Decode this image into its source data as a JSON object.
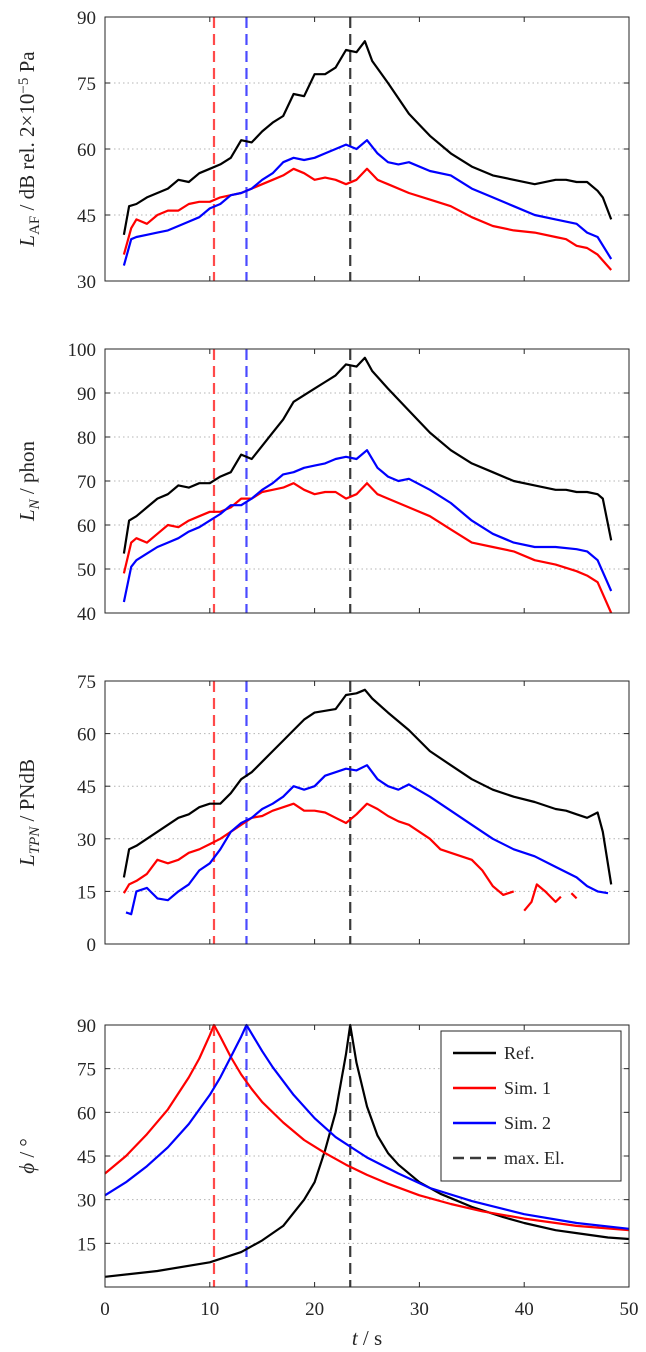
{
  "colors": {
    "ref": "#000000",
    "sim1": "#ff0000",
    "sim2": "#0000ff",
    "maxEl": "#3a3a3a",
    "sim1Vline": "#ff4a4a",
    "sim2Vline": "#4a4aff",
    "grid": "#b4b4b4",
    "axis": "#262626"
  },
  "legend": [
    {
      "label": "Ref.",
      "color": "#000000",
      "dash": false
    },
    {
      "label": "Sim. 1",
      "color": "#ff0000",
      "dash": false
    },
    {
      "label": "Sim. 2",
      "color": "#0000ff",
      "dash": false
    },
    {
      "label": "max. El.",
      "color": "#3a3a3a",
      "dash": true
    }
  ],
  "xlabel": {
    "var": "t",
    "unit": " / s"
  },
  "chart_data": [
    {
      "type": "line",
      "ylabel": {
        "main": "L",
        "sub": "AF",
        "rest": " / dB rel. 2×10",
        "sup": "−5",
        "tail": " Pa"
      },
      "xlim": [
        0,
        50
      ],
      "ylim": [
        30,
        90
      ],
      "yticks": [
        30,
        45,
        60,
        75,
        90
      ],
      "xticks": [
        0,
        10,
        20,
        30,
        40,
        50
      ],
      "show_xticklabels": false,
      "grid_y": true,
      "vlines": [
        {
          "x": 10.4,
          "color": "sim1"
        },
        {
          "x": 13.5,
          "color": "sim2"
        },
        {
          "x": 23.4,
          "color": "ref"
        }
      ],
      "series": [
        {
          "key": "ref",
          "x": [
            1.8,
            2.3,
            3,
            4,
            5,
            6,
            7,
            8,
            9,
            10,
            11,
            12,
            13,
            14,
            15,
            16,
            17,
            18,
            19,
            20,
            21,
            22,
            23,
            24,
            24.8,
            25.5,
            27,
            29,
            31,
            33,
            35,
            37,
            39,
            41,
            43,
            44,
            45,
            46,
            47,
            47.5,
            48.3
          ],
          "y": [
            40.5,
            47,
            47.5,
            49,
            50,
            51,
            53,
            52.5,
            54.5,
            55.5,
            56.5,
            58,
            62,
            61.5,
            64,
            66,
            67.5,
            72.5,
            72,
            77,
            77,
            78.5,
            82.5,
            82,
            84.5,
            80,
            75,
            68,
            63,
            59,
            56,
            54,
            53,
            52,
            53,
            53,
            52.5,
            52.5,
            50.5,
            49,
            44
          ]
        },
        {
          "key": "sim1",
          "x": [
            1.8,
            2.5,
            3,
            4,
            5,
            6,
            7,
            8,
            9,
            10,
            11,
            12,
            13,
            14,
            15,
            16,
            17,
            18,
            19,
            20,
            21,
            22,
            23,
            24,
            25,
            26,
            27,
            29,
            31,
            33,
            35,
            37,
            39,
            41,
            43,
            44,
            45,
            46,
            47,
            48.3
          ],
          "y": [
            36,
            42,
            44,
            43,
            45,
            46,
            46,
            47.5,
            48,
            48,
            49,
            49.5,
            50,
            51,
            52,
            53,
            54,
            55.5,
            54.5,
            53,
            53.5,
            53,
            52,
            53,
            55.5,
            53,
            52,
            50,
            48.5,
            47,
            44.5,
            42.5,
            41.5,
            41,
            40,
            39.5,
            38,
            37.5,
            36,
            32.5
          ]
        },
        {
          "key": "sim2",
          "x": [
            1.8,
            2.5,
            3,
            4,
            5,
            6,
            7,
            8,
            9,
            10,
            11,
            12,
            13,
            14,
            15,
            16,
            17,
            18,
            19,
            20,
            21,
            22,
            23,
            24,
            25,
            26,
            27,
            28,
            29,
            31,
            33,
            35,
            37,
            39,
            41,
            43,
            45,
            46,
            47,
            48.3
          ],
          "y": [
            33.5,
            39.5,
            40,
            40.5,
            41,
            41.5,
            42.5,
            43.5,
            44.5,
            46.5,
            47.5,
            49.5,
            50,
            51,
            53,
            54.5,
            57,
            58,
            57.5,
            58,
            59,
            60,
            61,
            60,
            62,
            59,
            57,
            56.5,
            57,
            55,
            54,
            51,
            49,
            47,
            45,
            44,
            43,
            41,
            40,
            35
          ]
        }
      ]
    },
    {
      "type": "line",
      "ylabel": {
        "main": "L",
        "sub": "N",
        "rest": " / phon"
      },
      "xlim": [
        0,
        50
      ],
      "ylim": [
        40,
        100
      ],
      "yticks": [
        40,
        50,
        60,
        70,
        80,
        90,
        100
      ],
      "xticks": [
        0,
        10,
        20,
        30,
        40,
        50
      ],
      "show_xticklabels": false,
      "grid_y": true,
      "vlines": [
        {
          "x": 10.4,
          "color": "sim1"
        },
        {
          "x": 13.5,
          "color": "sim2"
        },
        {
          "x": 23.4,
          "color": "ref"
        }
      ],
      "series": [
        {
          "key": "ref",
          "x": [
            1.8,
            2.3,
            3,
            4,
            5,
            6,
            7,
            8,
            9,
            10,
            11,
            12,
            13,
            14,
            15,
            16,
            17,
            18,
            19,
            20,
            21,
            22,
            23,
            24,
            24.8,
            25.5,
            27,
            29,
            31,
            33,
            35,
            37,
            39,
            41,
            43,
            44,
            45,
            46,
            47,
            47.5,
            48.3
          ],
          "y": [
            53.5,
            61,
            62,
            64,
            66,
            67,
            69,
            68.5,
            69.5,
            69.5,
            71,
            72,
            76,
            75,
            78,
            81,
            84,
            88,
            89.5,
            91,
            92.5,
            94,
            96.5,
            96,
            98,
            95,
            91,
            86,
            81,
            77,
            74,
            72,
            70,
            69,
            68,
            68,
            67.5,
            67.5,
            67,
            66,
            56.5
          ]
        },
        {
          "key": "sim1",
          "x": [
            1.8,
            2.5,
            3,
            4,
            5,
            6,
            7,
            8,
            9,
            10,
            11,
            12,
            13,
            14,
            15,
            16,
            17,
            18,
            19,
            20,
            21,
            22,
            23,
            24,
            25,
            26,
            27,
            29,
            31,
            33,
            35,
            37,
            39,
            41,
            43,
            45,
            46,
            47,
            48.3
          ],
          "y": [
            49,
            56,
            57,
            56,
            58,
            60,
            59.5,
            61,
            62,
            63,
            63,
            64,
            66,
            66,
            67.5,
            68,
            68.5,
            69.5,
            68,
            67,
            67.5,
            67.5,
            66,
            67,
            69.5,
            67,
            66,
            64,
            62,
            59,
            56,
            55,
            54,
            52,
            51,
            49.5,
            48.5,
            47,
            40
          ]
        },
        {
          "key": "sim2",
          "x": [
            1.8,
            2.5,
            3,
            4,
            5,
            6,
            7,
            8,
            9,
            10,
            11,
            12,
            13,
            14,
            15,
            16,
            17,
            18,
            19,
            20,
            21,
            22,
            23,
            24,
            25,
            26,
            27,
            28,
            29,
            31,
            33,
            35,
            37,
            39,
            41,
            43,
            45,
            46,
            47,
            48.3
          ],
          "y": [
            42.5,
            50.5,
            52,
            53.5,
            55,
            56,
            57,
            58.5,
            59.5,
            61,
            62.5,
            64.5,
            64.5,
            66,
            68,
            69.5,
            71.5,
            72,
            73,
            73.5,
            74,
            75,
            75.5,
            75,
            77,
            73,
            71,
            70,
            70.5,
            68,
            65,
            61,
            58,
            56,
            55,
            55,
            54.5,
            54,
            52,
            45
          ]
        }
      ]
    },
    {
      "type": "line",
      "ylabel": {
        "main": "L",
        "sub": "TPN",
        "rest": " / PNdB"
      },
      "xlim": [
        0,
        50
      ],
      "ylim": [
        0,
        75
      ],
      "yticks": [
        0,
        15,
        30,
        45,
        60,
        75
      ],
      "xticks": [
        0,
        10,
        20,
        30,
        40,
        50
      ],
      "show_xticklabels": false,
      "grid_y": true,
      "vlines": [
        {
          "x": 10.4,
          "color": "sim1"
        },
        {
          "x": 13.5,
          "color": "sim2"
        },
        {
          "x": 23.4,
          "color": "ref"
        }
      ],
      "series": [
        {
          "key": "ref",
          "x": [
            1.8,
            2.3,
            3,
            4,
            5,
            6,
            7,
            8,
            9,
            10,
            11,
            12,
            13,
            14,
            15,
            16,
            17,
            18,
            19,
            20,
            21,
            22,
            23,
            24,
            24.8,
            25.5,
            27,
            29,
            31,
            33,
            35,
            37,
            39,
            41,
            43,
            44,
            45,
            46,
            47,
            47.5,
            48.3
          ],
          "y": [
            19,
            27,
            28,
            30,
            32,
            34,
            36,
            37,
            39,
            40,
            40,
            43,
            47,
            49,
            52,
            55,
            58,
            61,
            64,
            66,
            66.5,
            67,
            71,
            71.5,
            72.5,
            70,
            66,
            61,
            55,
            51,
            47,
            44,
            42,
            40.5,
            38.5,
            38,
            37,
            36,
            37.5,
            32,
            17
          ]
        },
        {
          "key": "sim1",
          "x": [
            1.8,
            2.3,
            3,
            4,
            5,
            6,
            7,
            8,
            9,
            10,
            11,
            12,
            13,
            14,
            15,
            16,
            17,
            18,
            19,
            20,
            21,
            22,
            23,
            24,
            25,
            26,
            27,
            28,
            29,
            30,
            31,
            32,
            33,
            34,
            35,
            36,
            37,
            38,
            39
          ],
          "y": [
            14.5,
            17,
            18,
            20,
            24,
            23,
            24,
            26,
            27,
            28.5,
            30,
            32,
            34,
            36,
            36.5,
            38,
            39,
            40,
            38,
            38,
            37.5,
            36,
            34.5,
            37,
            40,
            38.5,
            36.5,
            35,
            34,
            32,
            30,
            27,
            26,
            25,
            24,
            21,
            16.5,
            14,
            15
          ]
        },
        {
          "key": "sim1b",
          "color": "sim1",
          "x": [
            40,
            40.7,
            41.2,
            42,
            43,
            43.5
          ],
          "y": [
            9.5,
            12,
            17,
            15,
            12,
            13.5
          ]
        },
        {
          "key": "sim1c",
          "color": "sim1",
          "x": [
            44.5,
            45
          ],
          "y": [
            14.5,
            13
          ]
        },
        {
          "key": "sim2",
          "x": [
            2,
            2.5,
            3,
            4,
            5,
            6,
            7,
            8,
            9,
            10,
            11,
            12,
            13,
            14,
            15,
            16,
            17,
            18,
            19,
            20,
            21,
            22,
            23,
            24,
            25,
            26,
            27,
            28,
            29,
            31,
            33,
            35,
            37,
            39,
            41,
            43,
            45,
            46,
            47,
            48
          ],
          "y": [
            9,
            8.5,
            15,
            16,
            13,
            12.5,
            15,
            17,
            21,
            23,
            27,
            32,
            34.5,
            36,
            38.5,
            40,
            42,
            45,
            44,
            45,
            48,
            49,
            50,
            49.5,
            51,
            47,
            45,
            44,
            45.5,
            42,
            38,
            34,
            30,
            27,
            25,
            22,
            19,
            16.5,
            15,
            14.5
          ]
        }
      ]
    },
    {
      "type": "line",
      "ylabel": {
        "main": "ϕ",
        "rest": " / °"
      },
      "xlim": [
        0,
        50
      ],
      "ylim": [
        0,
        90
      ],
      "yticks": [
        15,
        30,
        45,
        60,
        75,
        90
      ],
      "xticks": [
        0,
        10,
        20,
        30,
        40,
        50
      ],
      "xticklabels": [
        "0",
        "10",
        "20",
        "30",
        "40",
        "50"
      ],
      "show_xticklabels": true,
      "grid_y": true,
      "legend": "top-right",
      "vlines": [
        {
          "x": 10.4,
          "color": "sim1"
        },
        {
          "x": 13.5,
          "color": "sim2"
        },
        {
          "x": 23.4,
          "color": "ref"
        }
      ],
      "series": [
        {
          "key": "ref",
          "x": [
            0,
            5,
            10,
            13,
            15,
            17,
            19,
            20,
            21,
            22,
            22.5,
            23,
            23.4,
            24,
            25,
            26,
            27,
            28,
            30,
            32,
            35,
            38,
            40,
            43,
            45,
            48,
            50
          ],
          "y": [
            3.5,
            5.5,
            8.5,
            12,
            16,
            21,
            30,
            36,
            47,
            60,
            70,
            80,
            90,
            77,
            62,
            52,
            46,
            42,
            36,
            32,
            27.5,
            24,
            22,
            19.5,
            18.5,
            17,
            16.5
          ]
        },
        {
          "key": "sim1",
          "x": [
            0,
            2,
            4,
            6,
            8,
            9,
            10,
            10.4,
            11,
            12,
            13,
            14,
            15,
            17,
            19,
            21,
            23,
            25,
            27,
            30,
            33,
            36,
            40,
            45,
            50
          ],
          "y": [
            39,
            45,
            52.5,
            61,
            72,
            78.5,
            86.5,
            90,
            86,
            79,
            73,
            68,
            63.5,
            56.5,
            50.5,
            46,
            42,
            38.5,
            35.5,
            31.5,
            28.5,
            26,
            23.5,
            21,
            19.5
          ]
        },
        {
          "key": "sim2",
          "x": [
            0,
            2,
            4,
            6,
            8,
            10,
            11,
            12,
            13,
            13.5,
            14,
            15,
            16,
            18,
            20,
            22,
            25,
            28,
            31,
            35,
            40,
            45,
            50
          ],
          "y": [
            31.5,
            36,
            41.5,
            48,
            56,
            66,
            72,
            79,
            86,
            90,
            87,
            81,
            75.5,
            66,
            58,
            51.5,
            44.5,
            39,
            34,
            29.5,
            25,
            22,
            20
          ]
        }
      ]
    }
  ]
}
